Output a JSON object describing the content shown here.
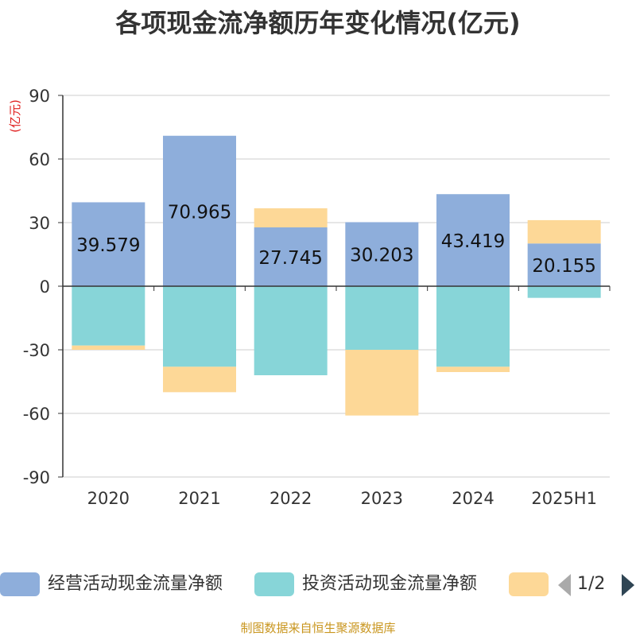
{
  "title": "各项现金流净额历年变化情况(亿元)",
  "source": "制图数据来自恒生聚源数据库",
  "pager": {
    "text": "1/2"
  },
  "legend": [
    {
      "label": "经营活动现金流量净额",
      "color": "#8eaedb"
    },
    {
      "label": "投资活动现金流量净额",
      "color": "#87d5d8"
    },
    {
      "label": "",
      "color": "#fdd897"
    }
  ],
  "chart_data": {
    "type": "bar",
    "stacked": true,
    "ylabel": "(亿元)",
    "ylim": [
      -90,
      90
    ],
    "yticks": [
      90,
      60,
      30,
      0,
      -30,
      -60,
      -90
    ],
    "grid": true,
    "categories": [
      "2020",
      "2021",
      "2022",
      "2023",
      "2024",
      "2025H1"
    ],
    "series": [
      {
        "name": "经营活动现金流量净额",
        "color": "#8eaedb",
        "values": [
          39.579,
          70.965,
          27.745,
          30.203,
          43.419,
          20.155
        ],
        "labels": [
          "39.579",
          "70.965",
          "27.745",
          "30.203",
          "43.419",
          "20.155"
        ]
      },
      {
        "name": "投资活动现金流量净额",
        "color": "#87d5d8",
        "values": [
          -28,
          -38,
          -42,
          -30,
          -38,
          -5.5
        ]
      },
      {
        "color": "#fdd897",
        "values": [
          -2,
          -12,
          9,
          -31,
          -2.5,
          11
        ]
      }
    ]
  }
}
